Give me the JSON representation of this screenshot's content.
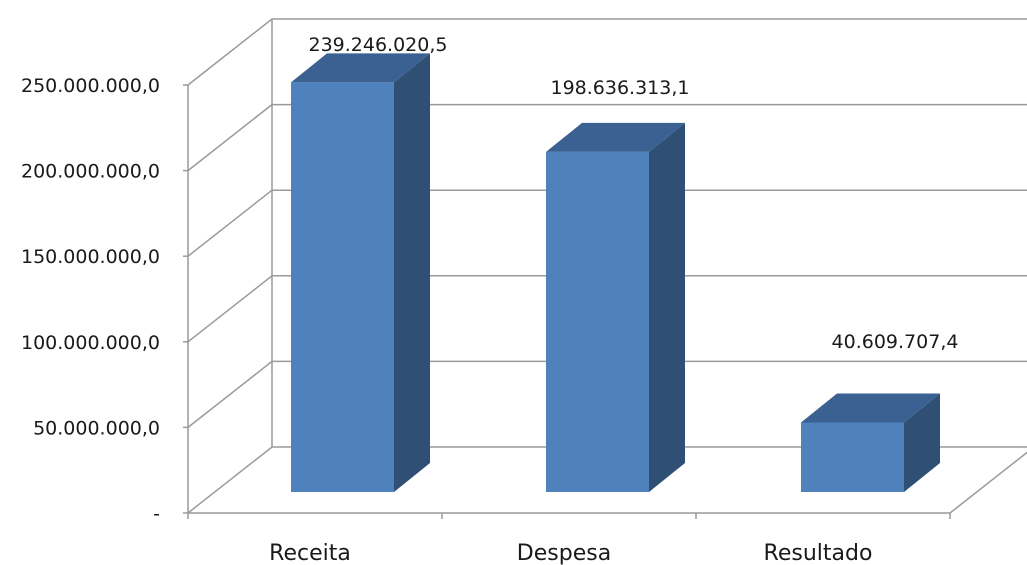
{
  "chart_data": {
    "type": "bar",
    "style": "3d-clustered-column",
    "categories": [
      "Receita",
      "Despesa",
      "Resultado"
    ],
    "values": [
      239246020.5,
      198636313.1,
      40609707.4
    ],
    "data_labels": [
      "239.246.020,5",
      "198.636.313,1",
      "40.609.707,4"
    ],
    "y_ticks": [
      0,
      50000000,
      100000000,
      150000000,
      200000000,
      250000000
    ],
    "y_tick_labels": [
      "-",
      "50.000.000,0",
      "100.000.000,0",
      "150.000.000,0",
      "200.000.000,0",
      "250.000.000,0"
    ],
    "ylim": [
      0,
      250000000
    ],
    "grid": true,
    "legend": "none",
    "colors": {
      "front": "#4f81bd",
      "top": "#3a6191",
      "side": "#2f4f74",
      "grid": "#9a9a9a"
    }
  }
}
